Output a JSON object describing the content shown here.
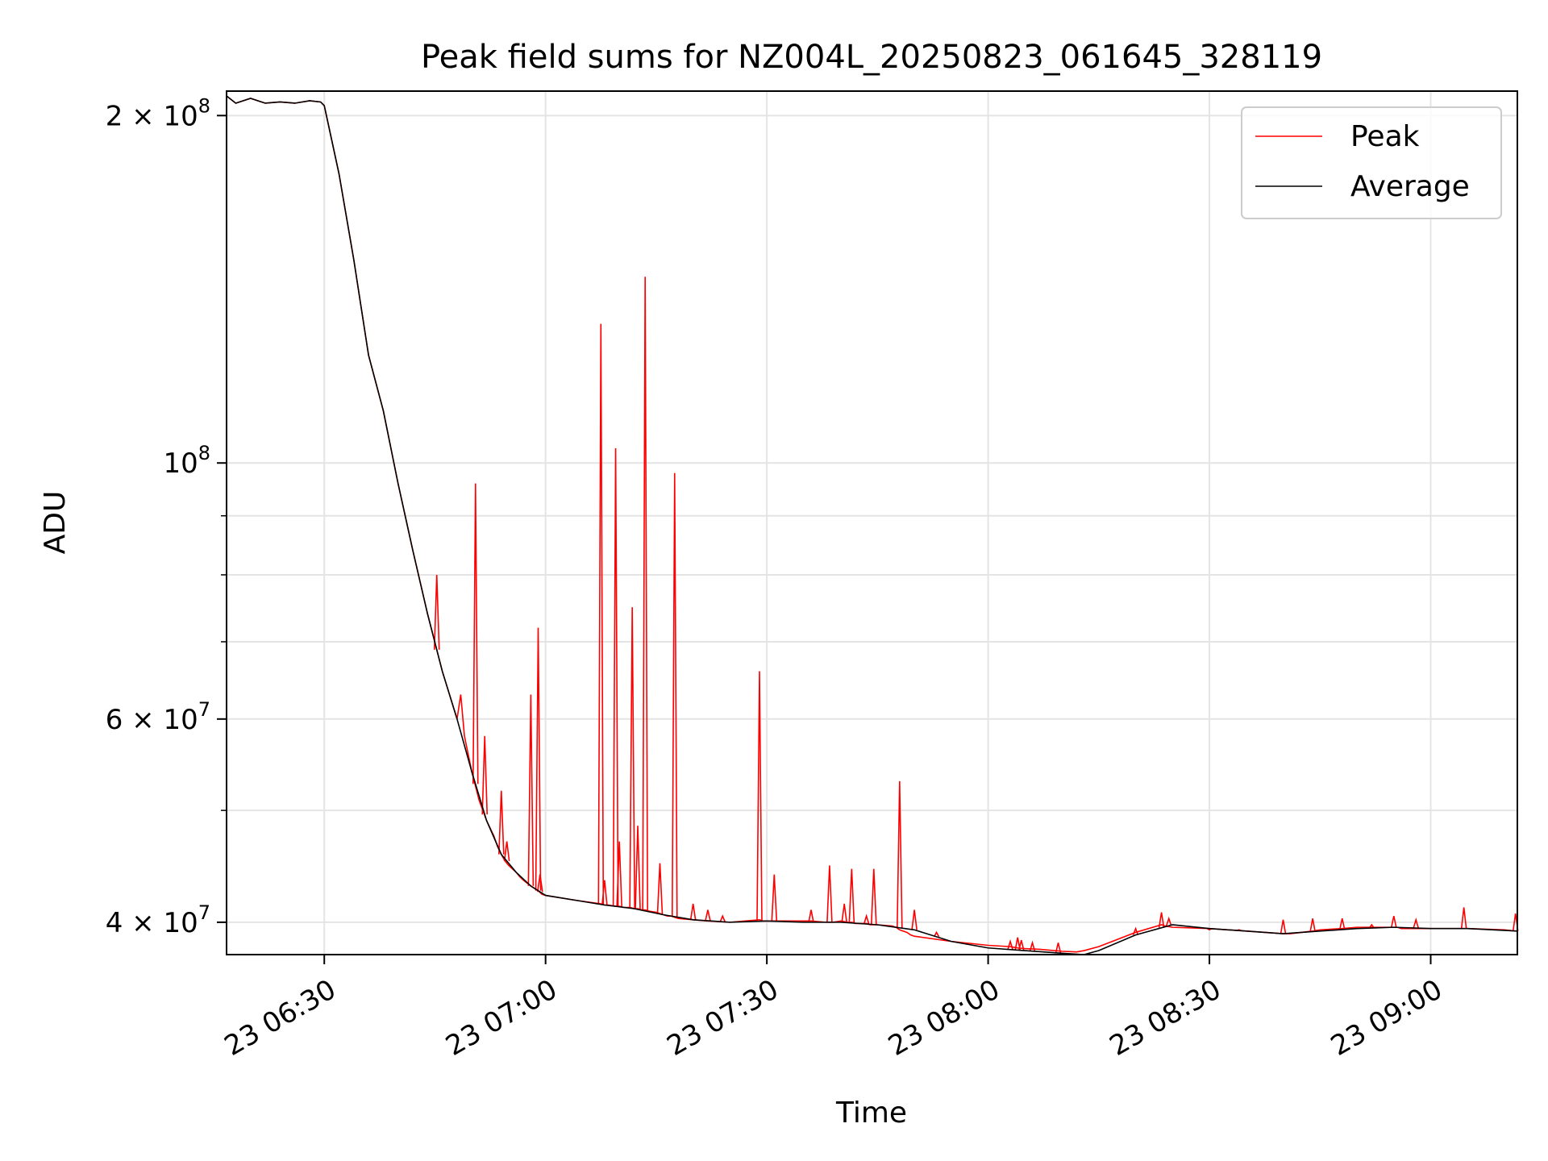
{
  "chart_data": {
    "type": "line",
    "title": "Peak field sums for NZ004L_20250823_061645_328119",
    "xlabel": "Time",
    "ylabel": "ADU",
    "yscale": "log",
    "grid": true,
    "legend_placement": "top-right",
    "xlim": [
      "2025-08-23 06:16:45",
      "2025-08-23 09:11:45"
    ],
    "ylim": [
      37500000,
      210000000
    ],
    "x_ticks": [
      "2025-08-23 06:30",
      "2025-08-23 07:00",
      "2025-08-23 07:30",
      "2025-08-23 08:00",
      "2025-08-23 08:30",
      "2025-08-23 09:00"
    ],
    "x_tick_labels": [
      "23 06:30",
      "23 07:00",
      "23 07:30",
      "23 08:00",
      "23 08:30",
      "23 09:00"
    ],
    "y_major_ticks": [
      {
        "value": 200000000,
        "mantissa": "2",
        "exp": "8"
      },
      {
        "value": 100000000,
        "mantissa": "",
        "exp": "8"
      },
      {
        "value": 60000000,
        "mantissa": "6",
        "exp": "7"
      },
      {
        "value": 40000000,
        "mantissa": "4",
        "exp": "7"
      }
    ],
    "y_minor_ticks": [
      90000000,
      80000000,
      70000000,
      50000000
    ],
    "series": [
      {
        "name": "Peak",
        "color": "#ff0000",
        "x": [
          "06:16:45",
          "06:18:00",
          "06:20:00",
          "06:22:00",
          "06:24:00",
          "06:26:00",
          "06:28:00",
          "06:29:30",
          "06:30:00",
          "06:32:00",
          "06:34:00",
          "06:36:00",
          "06:38:00",
          "06:40:00",
          "06:42:00",
          "06:44:00",
          "06:46:00",
          "06:48:00",
          "06:48:30",
          "06:49:00",
          "06:50:00",
          "06:51:00",
          "06:52:00",
          "06:53:00",
          "06:53:30",
          "06:54:00",
          "06:54:30",
          "06:55:00",
          "06:56:00",
          "06:56:30",
          "06:57:00",
          "06:58:00",
          "06:59:00",
          "06:59:30",
          "07:00:00",
          "07:04:00",
          "07:07:30",
          "07:08:00",
          "07:08:30",
          "07:09:30",
          "07:10:00",
          "07:10:30",
          "07:11:00",
          "07:11:30",
          "07:12:00",
          "07:12:30",
          "07:13:00",
          "07:13:30",
          "07:14:00",
          "07:15:00",
          "07:16:00",
          "07:16:30",
          "07:17:00",
          "07:17:30",
          "07:18:00",
          "07:20:00",
          "07:22:00",
          "07:25:00",
          "07:29:00",
          "07:29:30",
          "07:30:00",
          "07:31:00",
          "07:31:30",
          "07:32:00",
          "07:36:00",
          "07:38:00",
          "07:38:30",
          "07:39:00",
          "07:40:00",
          "07:41:00",
          "07:41:30",
          "07:42:00",
          "07:43:00",
          "07:43:30",
          "07:44:00",
          "07:45:00",
          "07:47:00",
          "07:47:30",
          "07:48:00",
          "07:49:00",
          "07:49:30",
          "07:50:00",
          "07:55:00",
          "08:00:00",
          "08:03:00",
          "08:03:30",
          "08:04:00",
          "08:05:00",
          "08:07:00",
          "08:09:00",
          "08:10:00",
          "08:12:00",
          "08:13:00",
          "08:15:00",
          "08:20:00",
          "08:23:30",
          "08:24:00",
          "08:25:00",
          "08:30:00",
          "08:35:00",
          "08:40:00",
          "08:41:00",
          "08:44:00",
          "08:45:00",
          "08:48:00",
          "08:50:00",
          "08:55:00",
          "08:55:30",
          "08:56:00",
          "08:59:00",
          "09:00:00",
          "09:03:00",
          "09:04:30",
          "09:05:00",
          "09:10:00",
          "09:11:30"
        ],
        "y": [
          208000000,
          205000000,
          207000000,
          205000000,
          205500000,
          205000000,
          206000000,
          205500000,
          204000000,
          178000000,
          150000000,
          124000000,
          111000000,
          96000000,
          84000000,
          74000000,
          66000000,
          60000000,
          63000000,
          58000000,
          54000000,
          51000000,
          49000000,
          47500000,
          46500000,
          45800000,
          45200000,
          44800000,
          44200000,
          43800000,
          43500000,
          43000000,
          42600000,
          42300000,
          42200000,
          41800000,
          41500000,
          41400000,
          41400000,
          41300000,
          41300000,
          41200000,
          41200000,
          41200000,
          41100000,
          41100000,
          41000000,
          41000000,
          40900000,
          40800000,
          40600000,
          40500000,
          40500000,
          40400000,
          40300000,
          40200000,
          40100000,
          40000000,
          40200000,
          40100000,
          40100000,
          40100000,
          40100000,
          40100000,
          40100000,
          40000000,
          40000000,
          40000000,
          40100000,
          40000000,
          40000000,
          39900000,
          39900000,
          39900000,
          39800000,
          39800000,
          39700000,
          39600000,
          39400000,
          39200000,
          39000000,
          38900000,
          38500000,
          38200000,
          38100000,
          38050000,
          38000000,
          37950000,
          37900000,
          37800000,
          37750000,
          37700000,
          37800000,
          38100000,
          39200000,
          39800000,
          39700000,
          39600000,
          39500000,
          39300000,
          39100000,
          39100000,
          39300000,
          39400000,
          39500000,
          39600000,
          39600000,
          39600000,
          39500000,
          39500000,
          39500000,
          39500000,
          39500000,
          39500000,
          39400000,
          39300000
        ]
      },
      {
        "name": "Average",
        "color": "#000000",
        "x": [
          "06:16:45",
          "06:18:00",
          "06:20:00",
          "06:22:00",
          "06:24:00",
          "06:26:00",
          "06:28:00",
          "06:29:30",
          "06:30:00",
          "06:32:00",
          "06:34:00",
          "06:36:00",
          "06:38:00",
          "06:40:00",
          "06:42:00",
          "06:44:00",
          "06:46:00",
          "06:48:00",
          "06:50:00",
          "06:52:00",
          "06:54:00",
          "06:56:00",
          "06:58:00",
          "07:00:00",
          "07:04:00",
          "07:08:00",
          "07:12:00",
          "07:16:00",
          "07:20:00",
          "07:25:00",
          "07:30:00",
          "07:35:00",
          "07:40:00",
          "07:45:00",
          "07:50:00",
          "07:55:00",
          "08:00:00",
          "08:05:00",
          "08:10:00",
          "08:13:00",
          "08:15:00",
          "08:20:00",
          "08:25:00",
          "08:30:00",
          "08:35:00",
          "08:40:00",
          "08:45:00",
          "08:50:00",
          "08:55:00",
          "09:00:00",
          "09:05:00",
          "09:11:45"
        ],
        "y": [
          208000000,
          205000000,
          207000000,
          205000000,
          205500000,
          205000000,
          206000000,
          205500000,
          204000000,
          178000000,
          150000000,
          124000000,
          111000000,
          96000000,
          84000000,
          74000000,
          66000000,
          60000000,
          54000000,
          49000000,
          45800000,
          44200000,
          43000000,
          42200000,
          41800000,
          41400000,
          41100000,
          40600000,
          40200000,
          40000000,
          40100000,
          40000000,
          40000000,
          39800000,
          39400000,
          38500000,
          38000000,
          37800000,
          37600000,
          37500000,
          37800000,
          39000000,
          39800000,
          39500000,
          39300000,
          39100000,
          39300000,
          39500000,
          39600000,
          39500000,
          39500000,
          39300000
        ]
      }
    ],
    "spikes": {
      "series": "Peak",
      "x": [
        "06:45:15",
        "06:50:30",
        "06:51:45",
        "06:54:00",
        "06:54:45",
        "06:58:00",
        "06:59:00",
        "06:59:15",
        "07:07:30",
        "07:08:00",
        "07:09:30",
        "07:10:00",
        "07:11:45",
        "07:12:30",
        "07:13:30",
        "07:15:30",
        "07:17:30",
        "07:20:00",
        "07:22:00",
        "07:24:00",
        "07:29:00",
        "07:31:00",
        "07:36:00",
        "07:38:30",
        "07:40:30",
        "07:41:30",
        "07:43:30",
        "07:44:30",
        "07:48:00",
        "07:50:00",
        "07:53:00",
        "08:03:00",
        "08:04:00",
        "08:04:30",
        "08:06:00",
        "08:09:30",
        "08:20:00",
        "08:23:30",
        "08:24:30",
        "08:30:00",
        "08:34:00",
        "08:40:00",
        "08:44:00",
        "08:48:00",
        "08:52:00",
        "08:55:00",
        "08:58:00",
        "09:04:30",
        "09:11:30"
      ],
      "y": [
        80000000,
        96000000,
        58000000,
        52000000,
        47000000,
        63000000,
        72000000,
        44000000,
        132000000,
        43500000,
        103000000,
        47000000,
        75000000,
        48500000,
        145000000,
        45000000,
        98000000,
        41500000,
        41000000,
        40500000,
        66000000,
        44000000,
        41000000,
        44800000,
        41500000,
        44500000,
        40500000,
        44500000,
        53000000,
        41000000,
        39200000,
        38500000,
        38800000,
        38600000,
        38400000,
        38400000,
        39500000,
        40800000,
        40300000,
        39400000,
        39400000,
        40200000,
        40300000,
        40300000,
        39800000,
        40500000,
        40200000,
        41200000,
        40700000
      ]
    }
  }
}
